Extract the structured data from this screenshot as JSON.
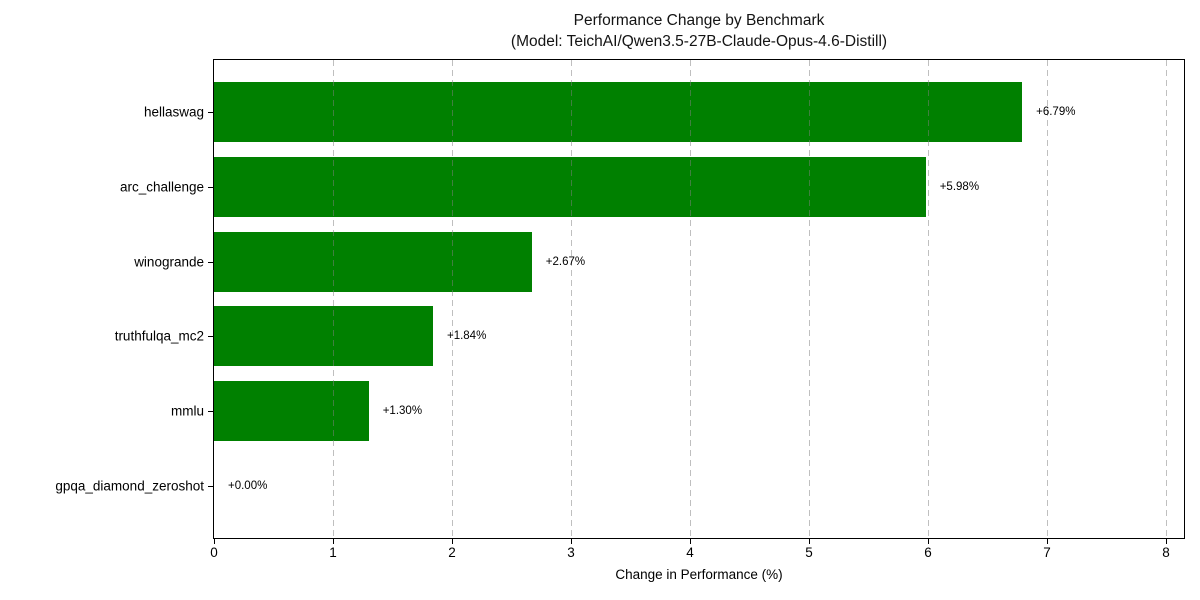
{
  "chart_data": {
    "type": "bar",
    "orientation": "horizontal",
    "title": "Performance Change by Benchmark",
    "subtitle": "(Model: TeichAI/Qwen3.5-27B-Claude-Opus-4.6-Distill)",
    "xlabel": "Change in Performance (%)",
    "ylabel": "",
    "categories": [
      "hellaswag",
      "arc_challenge",
      "winogrande",
      "truthfulqa_mc2",
      "mmlu",
      "gpqa_diamond_zeroshot"
    ],
    "values": [
      6.79,
      5.98,
      2.67,
      1.84,
      1.3,
      0.0
    ],
    "value_labels": [
      "+6.79%",
      "+5.98%",
      "+2.67%",
      "+1.84%",
      "+1.30%",
      "+0.00%"
    ],
    "x_ticks": [
      0,
      1,
      2,
      3,
      4,
      5,
      6,
      7,
      8
    ],
    "xlim": [
      0,
      8.15
    ],
    "bar_color": "#008000",
    "grid": {
      "axis": "x",
      "style": "dashed",
      "color": "#808080",
      "alpha": 0.5,
      "drawn_over_bars": true
    },
    "legend": "none",
    "frame": "full-box"
  }
}
